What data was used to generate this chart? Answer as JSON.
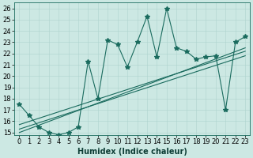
{
  "xlabel": "Humidex (Indice chaleur)",
  "ylabel": "",
  "bg_color": "#cce8e3",
  "line_color": "#1a6b5e",
  "grid_color": "#aed4ce",
  "x_data": [
    0,
    1,
    2,
    3,
    4,
    5,
    6,
    7,
    8,
    9,
    10,
    11,
    12,
    13,
    14,
    15,
    16,
    17,
    18,
    19,
    20,
    21,
    22,
    23
  ],
  "y_data": [
    17.5,
    16.5,
    15.5,
    15.0,
    14.8,
    15.0,
    15.5,
    21.3,
    18.0,
    23.2,
    22.8,
    20.8,
    23.0,
    25.3,
    21.7,
    26.0,
    22.5,
    22.2,
    21.5,
    21.7,
    21.8,
    17.0,
    23.0,
    23.5
  ],
  "trend_lines": [
    [
      [
        0,
        23
      ],
      [
        15.0,
        22.5
      ]
    ],
    [
      [
        0,
        23
      ],
      [
        15.3,
        21.8
      ]
    ],
    [
      [
        0,
        23
      ],
      [
        15.7,
        22.2
      ]
    ]
  ],
  "ylim": [
    14.8,
    26.5
  ],
  "xlim": [
    -0.5,
    23.5
  ],
  "yticks": [
    15,
    16,
    17,
    18,
    19,
    20,
    21,
    22,
    23,
    24,
    25,
    26
  ],
  "xticks": [
    0,
    1,
    2,
    3,
    4,
    5,
    6,
    7,
    8,
    9,
    10,
    11,
    12,
    13,
    14,
    15,
    16,
    17,
    18,
    19,
    20,
    21,
    22,
    23
  ],
  "marker": "*",
  "marker_size": 4,
  "line_width": 0.8,
  "tick_fontsize": 6,
  "label_fontsize": 7
}
